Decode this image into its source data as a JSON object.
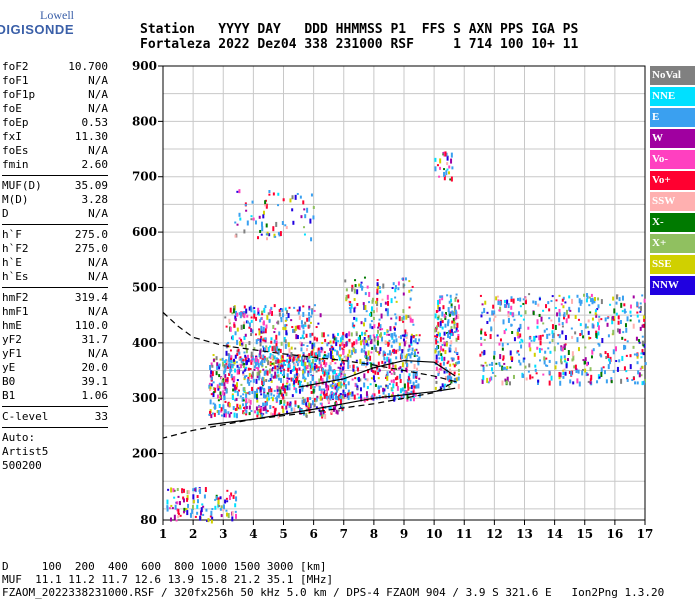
{
  "logo": {
    "line1": "Lowell",
    "line2": "DIGISONDE"
  },
  "header": {
    "line1": "Station   YYYY DAY   DDD HHMMSS P1  FFS S AXN PPS IGA PS",
    "line2": "Fortaleza 2022 Dez04 338 231000 RSF     1 714 100 10+ 11"
  },
  "params": [
    [
      {
        "k": "foF2",
        "v": "10.700"
      },
      {
        "k": "foF1",
        "v": "N/A"
      },
      {
        "k": "foF1p",
        "v": "N/A"
      },
      {
        "k": "foE",
        "v": "N/A"
      },
      {
        "k": "foEp",
        "v": "0.53"
      },
      {
        "k": "fxI",
        "v": "11.30"
      },
      {
        "k": "foEs",
        "v": "N/A"
      },
      {
        "k": "fmin",
        "v": "2.60"
      }
    ],
    [
      {
        "k": "MUF(D)",
        "v": "35.09"
      },
      {
        "k": "M(D)",
        "v": "3.28"
      },
      {
        "k": "D",
        "v": "N/A"
      }
    ],
    [
      {
        "k": "h`F",
        "v": "275.0"
      },
      {
        "k": "h`F2",
        "v": "275.0"
      },
      {
        "k": "h`E",
        "v": "N/A"
      },
      {
        "k": "h`Es",
        "v": "N/A"
      }
    ],
    [
      {
        "k": "hmF2",
        "v": "319.4"
      },
      {
        "k": "hmF1",
        "v": "N/A"
      },
      {
        "k": "hmE",
        "v": "110.0"
      },
      {
        "k": "yF2",
        "v": "31.7"
      },
      {
        "k": "yF1",
        "v": "N/A"
      },
      {
        "k": "yE",
        "v": "20.0"
      },
      {
        "k": "B0",
        "v": "39.1"
      },
      {
        "k": "B1",
        "v": "1.06"
      }
    ],
    [
      {
        "k": "C-level",
        "v": "33"
      }
    ]
  ],
  "auto": [
    "Auto:",
    "Artist5",
    "500200"
  ],
  "legend": [
    {
      "label": "NoVal",
      "color": "#808080"
    },
    {
      "label": "NNE",
      "color": "#00e0ff"
    },
    {
      "label": "E",
      "color": "#3aa0f0"
    },
    {
      "label": "W",
      "color": "#a000a0"
    },
    {
      "label": "Vo-",
      "color": "#ff40c0"
    },
    {
      "label": "Vo+",
      "color": "#ff0030"
    },
    {
      "label": "SSW",
      "color": "#ffb0b0"
    },
    {
      "label": "X-",
      "color": "#007a00"
    },
    {
      "label": "X+",
      "color": "#90c060"
    },
    {
      "label": "SSE",
      "color": "#d0d000"
    },
    {
      "label": "NNW",
      "color": "#2000e0"
    }
  ],
  "footer": {
    "line1": "D     100  200  400  600  800 1000 1500 3000 [km]",
    "line2": "MUF  11.1 11.2 11.7 12.6 13.9 15.8 21.2 35.1 [MHz]",
    "line3": "FZAOM_2022338231000.RSF / 320fx256h 50 kHz 5.0 km / DPS-4 FZAOM 904 / 3.9 S 321.6 E   Ion2Png 1.3.20"
  },
  "chart_data": {
    "type": "scatter",
    "xlabel": "",
    "ylabel": "",
    "x_ticks": [
      "1",
      "2",
      "3",
      "4",
      "5",
      "6",
      "7",
      "8",
      "9",
      "10",
      "11",
      "12",
      "13",
      "14",
      "15",
      "16",
      "17"
    ],
    "y_ticks": [
      "200",
      "300",
      "400",
      "500",
      "600",
      "700",
      "800",
      "900"
    ],
    "xlim": [
      1,
      17
    ],
    "ylim": [
      80,
      900
    ],
    "dashed_profile": [
      [
        1,
        455
      ],
      [
        1.5,
        430
      ],
      [
        2,
        410
      ],
      [
        3,
        395
      ],
      [
        5,
        380
      ],
      [
        7,
        368
      ],
      [
        8,
        360
      ],
      [
        9,
        350
      ],
      [
        10,
        340
      ],
      [
        10.7,
        330
      ],
      [
        10,
        310
      ],
      [
        8,
        290
      ],
      [
        6,
        275
      ],
      [
        4,
        262
      ],
      [
        2,
        242
      ],
      [
        1,
        228
      ]
    ],
    "solid_trace": [
      [
        2.5,
        252
      ],
      [
        4,
        262
      ],
      [
        6,
        280
      ],
      [
        8,
        300
      ],
      [
        10,
        312
      ],
      [
        10.7,
        318
      ]
    ],
    "solid_profile": [
      [
        5.5,
        320
      ],
      [
        7,
        335
      ],
      [
        8,
        355
      ],
      [
        9,
        368
      ],
      [
        10,
        365
      ],
      [
        10.7,
        340
      ]
    ],
    "clusters": [
      {
        "x0": 2.5,
        "x1": 7,
        "y0": 270,
        "y1": 380,
        "n": 700,
        "seed": 1
      },
      {
        "x0": 3,
        "x1": 6.2,
        "y0": 350,
        "y1": 470,
        "n": 350,
        "seed": 2
      },
      {
        "x0": 6.2,
        "x1": 9.5,
        "y0": 300,
        "y1": 420,
        "n": 450,
        "seed": 3
      },
      {
        "x0": 7,
        "x1": 9.3,
        "y0": 400,
        "y1": 520,
        "n": 150,
        "seed": 4
      },
      {
        "x0": 10,
        "x1": 10.8,
        "y0": 320,
        "y1": 490,
        "n": 180,
        "seed": 5
      },
      {
        "x0": 11.5,
        "x1": 17,
        "y0": 330,
        "y1": 490,
        "n": 500,
        "seed": 6
      },
      {
        "x0": 3.3,
        "x1": 6,
        "y0": 590,
        "y1": 680,
        "n": 70,
        "seed": 7
      },
      {
        "x0": 10,
        "x1": 10.7,
        "y0": 690,
        "y1": 750,
        "n": 25,
        "seed": 8
      },
      {
        "x0": 1.1,
        "x1": 3.4,
        "y0": 80,
        "y1": 140,
        "n": 110,
        "seed": 9
      }
    ]
  }
}
